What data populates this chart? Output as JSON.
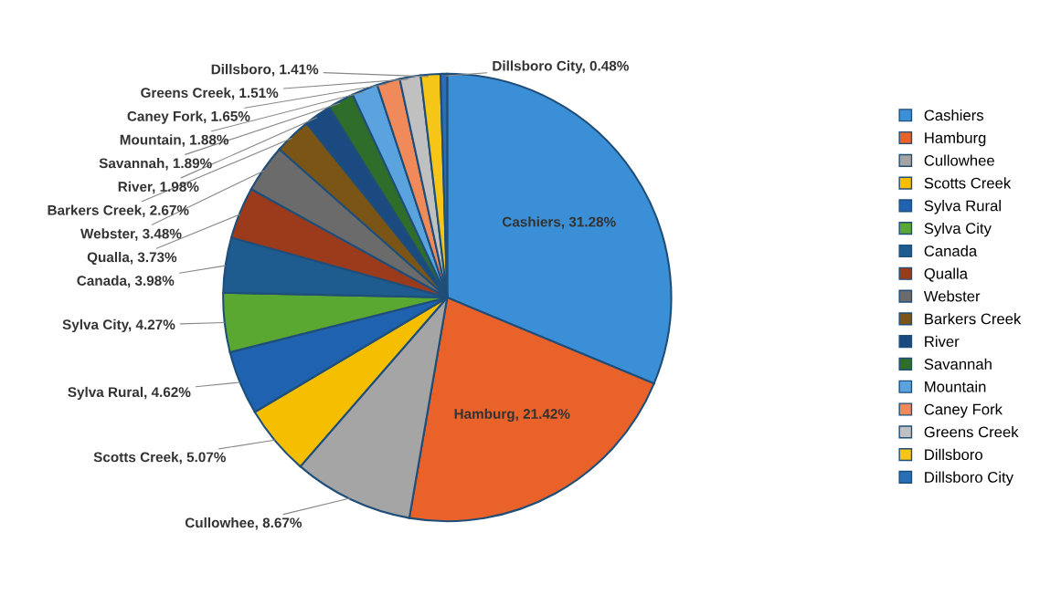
{
  "chart_data": {
    "type": "pie",
    "categories": [
      "Cashiers",
      "Hamburg",
      "Cullowhee",
      "Scotts Creek",
      "Sylva Rural",
      "Sylva City",
      "Canada",
      "Qualla",
      "Webster",
      "Barkers Creek",
      "River",
      "Savannah",
      "Mountain",
      "Caney Fork",
      "Greens Creek",
      "Dillsboro",
      "Dillsboro City"
    ],
    "values": [
      31.28,
      21.42,
      8.67,
      5.07,
      4.62,
      4.27,
      3.98,
      3.73,
      3.48,
      2.67,
      1.98,
      1.89,
      1.88,
      1.65,
      1.51,
      1.41,
      0.48
    ],
    "value_labels": [
      "Cashiers, 31.28%",
      "Hamburg, 21.42%",
      "Cullowhee, 8.67%",
      "Scotts Creek, 5.07%",
      "Sylva Rural, 4.62%",
      "Sylva City, 4.27%",
      "Canada, 3.98%",
      "Qualla, 3.73%",
      "Webster, 3.48%",
      "Barkers Creek, 2.67%",
      "River, 1.98%",
      "Savannah, 1.89%",
      "Mountain, 1.88%",
      "Caney Fork, 1.65%",
      "Greens Creek, 1.51%",
      "Dillsboro, 1.41%",
      "Dillsboro City, 0.48%"
    ],
    "colors": [
      "#3b8fd6",
      "#e8622a",
      "#a5a5a5",
      "#f5bf00",
      "#1f63b0",
      "#5aa832",
      "#1e5b8e",
      "#9c3a1c",
      "#6b6b6b",
      "#7a5515",
      "#1a4a80",
      "#2f6e2a",
      "#5aa3de",
      "#f08a5a",
      "#c0c0c0",
      "#f5c518",
      "#2a6fb5"
    ],
    "legend": "right"
  }
}
